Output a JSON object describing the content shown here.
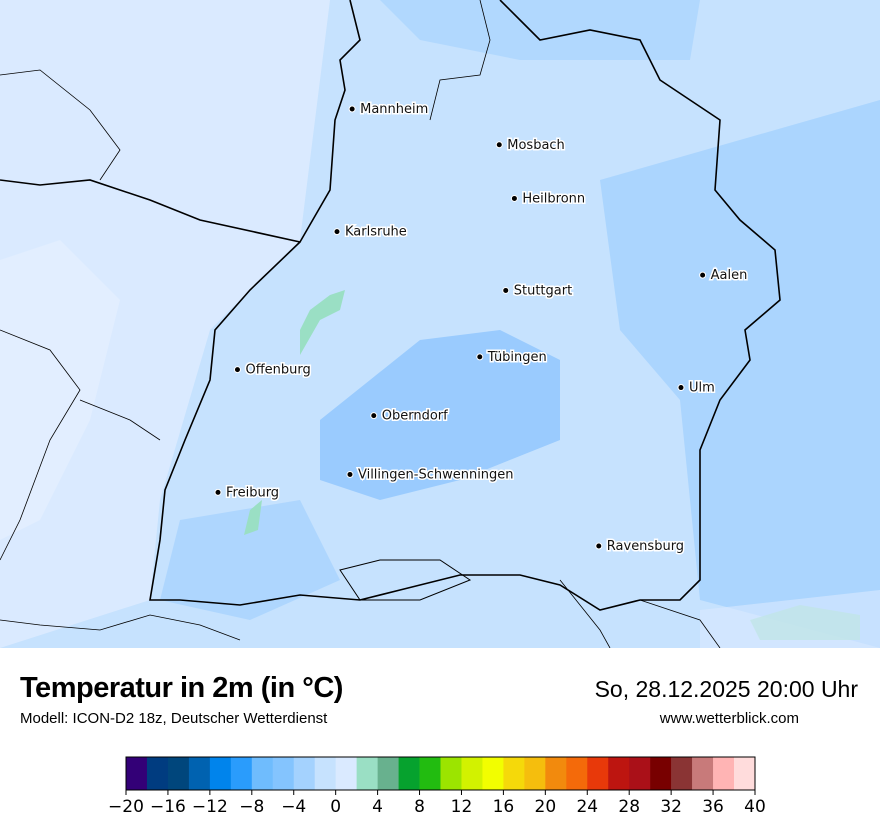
{
  "map": {
    "cities": [
      {
        "name": "Mannheim",
        "lon_lat": [
          8.47,
          49.49
        ]
      },
      {
        "name": "Mosbach",
        "lon_lat": [
          9.15,
          49.35
        ]
      },
      {
        "name": "Heilbronn",
        "lon_lat": [
          9.22,
          49.14
        ]
      },
      {
        "name": "Karlsruhe",
        "lon_lat": [
          8.4,
          49.01
        ]
      },
      {
        "name": "Aalen",
        "lon_lat": [
          10.09,
          48.84
        ]
      },
      {
        "name": "Stuttgart",
        "lon_lat": [
          9.18,
          48.78
        ]
      },
      {
        "name": "Tübingen",
        "lon_lat": [
          9.06,
          48.52
        ]
      },
      {
        "name": "Offenburg",
        "lon_lat": [
          7.94,
          48.47
        ]
      },
      {
        "name": "Ulm",
        "lon_lat": [
          9.99,
          48.4
        ]
      },
      {
        "name": "Oberndorf",
        "lon_lat": [
          8.57,
          48.29
        ]
      },
      {
        "name": "Villingen-Schwenningen",
        "lon_lat": [
          8.46,
          48.06
        ]
      },
      {
        "name": "Freiburg",
        "lon_lat": [
          7.85,
          47.99
        ]
      },
      {
        "name": "Ravensburg",
        "lon_lat": [
          9.61,
          47.78
        ]
      }
    ],
    "base_color": "#c6e2fe"
  },
  "footer": {
    "title": "Temperatur in 2m (in °C)",
    "subtitle": "Modell: ICON-D2 18z, Deutscher Wetterdienst",
    "datetime": "So, 28.12.2025 20:00 Uhr",
    "website": "www.wetterblick.com"
  },
  "colorbar": {
    "min": -20,
    "max": 40,
    "step": 2,
    "ticks": [
      "−20",
      "−16",
      "−12",
      "−8",
      "−4",
      "0",
      "4",
      "8",
      "12",
      "16",
      "20",
      "24",
      "28",
      "32",
      "36",
      "40"
    ],
    "colors": [
      "#330077",
      "#003c80",
      "#00467c",
      "#0062b0",
      "#0084ec",
      "#2a9cfc",
      "#6fbcfd",
      "#84c4fe",
      "#a4d2fe",
      "#c6e2fe",
      "#daeaff",
      "#9adfc4",
      "#68b18e",
      "#06a22e",
      "#22bc10",
      "#9ce400",
      "#d2f200",
      "#f2fe00",
      "#f5d90a",
      "#f5be0d",
      "#f28a0d",
      "#f46a0a",
      "#e8390a",
      "#bd1510",
      "#aa1018",
      "#780000",
      "#8a3434",
      "#c87a7a",
      "#ffb4b4",
      "#ffdcdc"
    ]
  }
}
